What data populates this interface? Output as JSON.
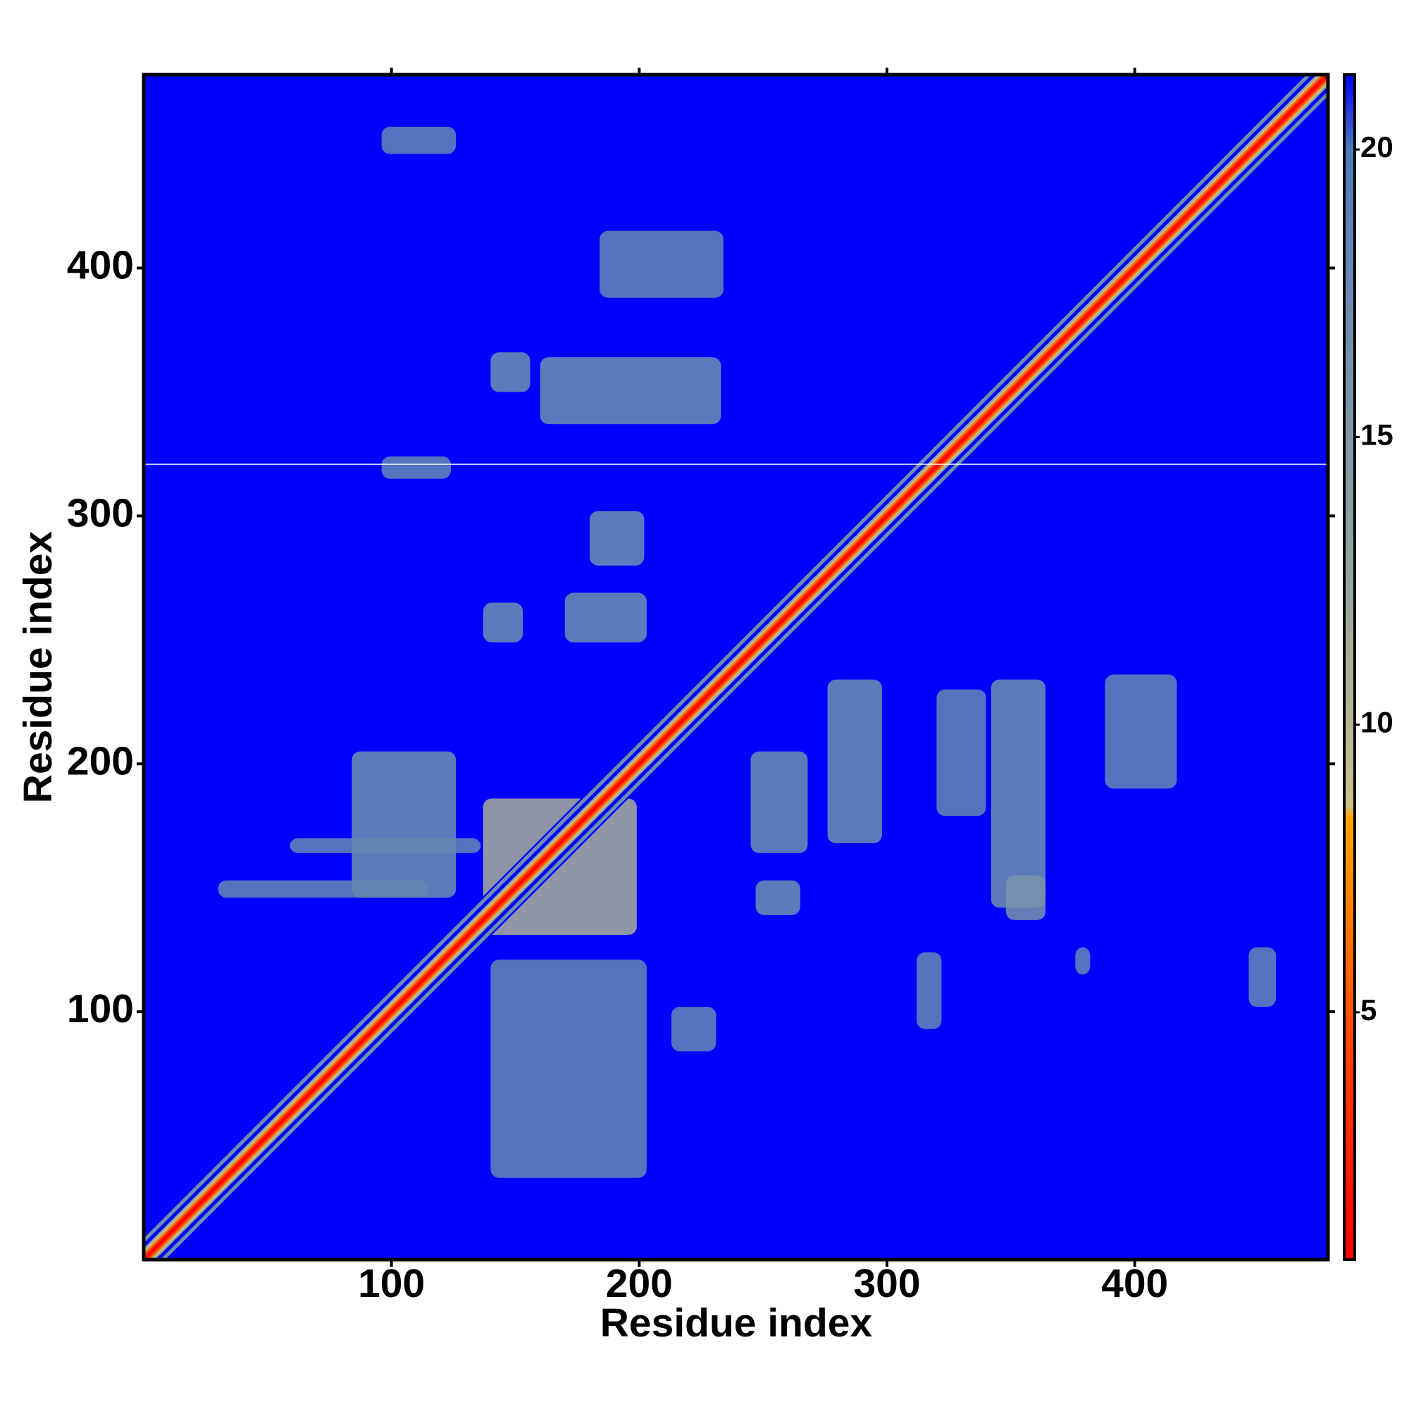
{
  "chart_data": {
    "type": "heatmap",
    "xlabel": "Residue index",
    "ylabel": "Residue index",
    "xlim": [
      0,
      478
    ],
    "ylim": [
      0,
      478
    ],
    "xticks": [
      100,
      200,
      300,
      400
    ],
    "yticks": [
      100,
      200,
      300,
      400
    ],
    "clim": [
      0.7,
      21.3
    ],
    "cticks": [
      5,
      10,
      15,
      20
    ],
    "colorscale": [
      [
        0.7,
        "#ff0000"
      ],
      [
        4,
        "#ff3a00"
      ],
      [
        8.4,
        "#ffa500"
      ],
      [
        8.6,
        "#c8c08c"
      ],
      [
        12,
        "#9aa89a"
      ],
      [
        17,
        "#6f8fb0"
      ],
      [
        20,
        "#4f78b8"
      ],
      [
        21.3,
        "#0000ff"
      ]
    ],
    "diagonal": {
      "offset": [
        9,
        8,
        7,
        6,
        5,
        4,
        3,
        2,
        1,
        0
      ],
      "values": [
        21.3,
        17,
        17,
        21.3,
        21.3,
        12,
        9,
        6,
        3,
        1
      ]
    },
    "blocks": {
      "x0": [
        140,
        160,
        184,
        180,
        137,
        170,
        96,
        342,
        348,
        320,
        276,
        245,
        247,
        388,
        312,
        446,
        140,
        84,
        30,
        59,
        96,
        213,
        376,
        137
      ],
      "x1": [
        156,
        233,
        234,
        202,
        153,
        203,
        124,
        364,
        364,
        340,
        298,
        268,
        265,
        417,
        322,
        457,
        203,
        126,
        115,
        136,
        126,
        231,
        382,
        199
      ],
      "y0": [
        350,
        337,
        388,
        280,
        249,
        249,
        315,
        142,
        137,
        179,
        168,
        164,
        139,
        190,
        93,
        102,
        33,
        146,
        146,
        164,
        446,
        84,
        115,
        131
      ],
      "y1": [
        366,
        364,
        415,
        302,
        265,
        269,
        324,
        234,
        155,
        230,
        234,
        205,
        153,
        236,
        124,
        126,
        121,
        205,
        153,
        170,
        457,
        102,
        126,
        186
      ],
      "values": [
        17,
        17,
        18,
        17,
        17,
        17,
        18,
        17,
        16,
        18,
        17,
        17,
        17,
        18,
        18,
        18,
        18,
        17,
        18,
        18,
        18,
        18,
        18,
        11
      ]
    }
  }
}
